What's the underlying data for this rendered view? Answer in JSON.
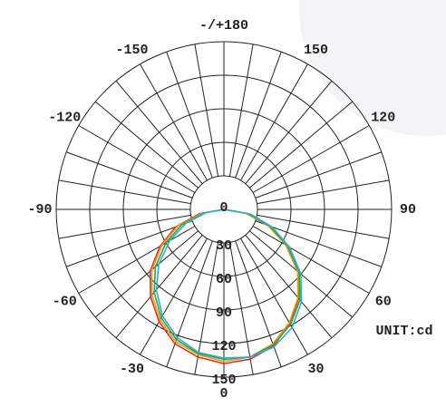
{
  "chart_data": {
    "type": "polar",
    "unit_label": "UNIT:cd",
    "theta": [
      -90,
      -80,
      -70,
      -60,
      -50,
      -40,
      -30,
      -20,
      -10,
      0,
      10,
      20,
      30,
      40,
      50,
      60,
      70,
      80,
      90
    ],
    "series": [
      {
        "color": "#e0302a",
        "values": [
          0,
          22,
          46,
          66,
          86,
          102,
          116,
          128,
          134,
          138,
          136,
          130,
          118,
          104,
          86,
          64,
          42,
          20,
          0
        ]
      },
      {
        "color": "#e8a020",
        "values": [
          0,
          20,
          44,
          64,
          84,
          100,
          114,
          126,
          132,
          136,
          134,
          128,
          117,
          103,
          86,
          64,
          42,
          20,
          0
        ]
      },
      {
        "color": "#3aa040",
        "values": [
          0,
          18,
          40,
          60,
          80,
          97,
          112,
          124,
          131,
          134,
          134,
          129,
          119,
          106,
          88,
          66,
          44,
          22,
          0
        ]
      },
      {
        "color": "#30b0d0",
        "values": [
          0,
          16,
          36,
          56,
          76,
          94,
          110,
          122,
          130,
          133,
          134,
          131,
          122,
          108,
          90,
          68,
          46,
          24,
          0
        ]
      }
    ],
    "rlim": [
      0,
      150
    ],
    "rticks": [
      0,
      30,
      60,
      90,
      120,
      150
    ],
    "angle_ticks": [
      {
        "value": 180,
        "label": "-/+180"
      },
      -150,
      -120,
      -90,
      -60,
      -30,
      0,
      30,
      60,
      90,
      120,
      150
    ]
  }
}
